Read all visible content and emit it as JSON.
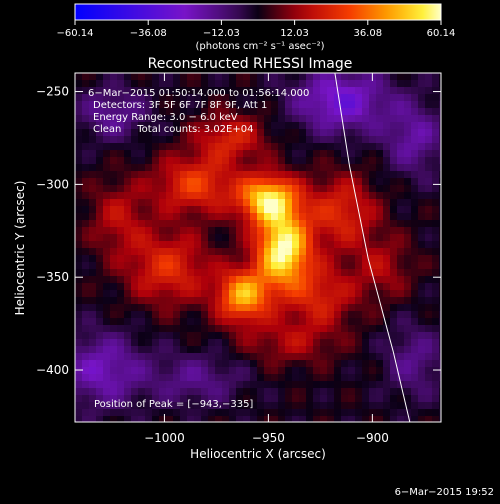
{
  "chart_data": {
    "type": "heatmap",
    "title": "Reconstructed RHESSI Image",
    "xlabel": "Heliocentric X (arcsec)",
    "ylabel": "Heliocentric Y (arcsec)",
    "xlim": [
      -1043,
      -867
    ],
    "ylim": [
      -428,
      -240
    ],
    "xticks": [
      {
        "value": -1000,
        "label": "−1000"
      },
      {
        "value": -950,
        "label": "−950"
      },
      {
        "value": -900,
        "label": "−900"
      }
    ],
    "yticks": [
      {
        "value": -250,
        "label": "−250"
      },
      {
        "value": -300,
        "label": "−300"
      },
      {
        "value": -350,
        "label": "−350"
      },
      {
        "value": -400,
        "label": "−400"
      }
    ],
    "colorbar": {
      "min": -60.14,
      "max": 60.14,
      "tick_values": [
        -60.14,
        -36.08,
        -12.03,
        12.03,
        36.08,
        60.14
      ],
      "tick_labels": [
        "−60.14",
        "−36.08",
        "−12.03",
        "12.03",
        "36.08",
        "60.14"
      ],
      "units": "(photons cm⁻² s⁻¹ asec⁻²)"
    },
    "annotations": {
      "time_range": "6−Mar−2015 01:50:14.000 to 01:56:14.000",
      "detectors": "Detectors: 3F 5F 6F 7F 8F 9F, Att 1",
      "energy": "Energy Range: 3.0 − 6.0 keV",
      "clean": "Clean     Total counts: 3.02E+04",
      "peak": "Position of Peak = [−943,−335]"
    },
    "peak": {
      "x": -943,
      "y": -335
    },
    "sources": [
      {
        "x": -943,
        "y": -335,
        "amp": 60,
        "sx": 9,
        "sy": 14
      },
      {
        "x": -950,
        "y": -308,
        "amp": 52,
        "sx": 10,
        "sy": 9
      },
      {
        "x": -962,
        "y": -360,
        "amp": 45,
        "sx": 9,
        "sy": 10
      },
      {
        "x": -985,
        "y": -300,
        "amp": 28,
        "sx": 14,
        "sy": 11
      },
      {
        "x": -915,
        "y": -315,
        "amp": 24,
        "sx": 12,
        "sy": 14
      },
      {
        "x": -998,
        "y": -345,
        "amp": 25,
        "sx": 14,
        "sy": 14
      },
      {
        "x": -968,
        "y": -275,
        "amp": 22,
        "sx": 12,
        "sy": 9
      },
      {
        "x": -925,
        "y": -360,
        "amp": 22,
        "sx": 12,
        "sy": 12
      },
      {
        "x": -1022,
        "y": -318,
        "amp": 16,
        "sx": 10,
        "sy": 14
      },
      {
        "x": -940,
        "y": -385,
        "amp": 14,
        "sx": 16,
        "sy": 9
      },
      {
        "x": -895,
        "y": -345,
        "amp": 14,
        "sx": 10,
        "sy": 12
      }
    ],
    "negative_regions": [
      {
        "x": -915,
        "y": -255,
        "amp": -28,
        "sx": 16,
        "sy": 12
      },
      {
        "x": -1030,
        "y": -400,
        "amp": -22,
        "sx": 14,
        "sy": 14
      },
      {
        "x": -880,
        "y": -275,
        "amp": -18,
        "sx": 10,
        "sy": 14
      },
      {
        "x": -1025,
        "y": -262,
        "amp": -16,
        "sx": 12,
        "sy": 10
      },
      {
        "x": -985,
        "y": -405,
        "amp": -14,
        "sx": 16,
        "sy": 10
      },
      {
        "x": -880,
        "y": -395,
        "amp": -14,
        "sx": 10,
        "sy": 14
      }
    ],
    "background_offset": 0,
    "limb": [
      {
        "x": -918,
        "y": -240
      },
      {
        "x": -911,
        "y": -290
      },
      {
        "x": -902,
        "y": -340
      },
      {
        "x": -890,
        "y": -390
      },
      {
        "x": -882,
        "y": -428
      }
    ],
    "grid": false
  },
  "footer": {
    "timestamp": "6−Mar−2015 19:52"
  }
}
